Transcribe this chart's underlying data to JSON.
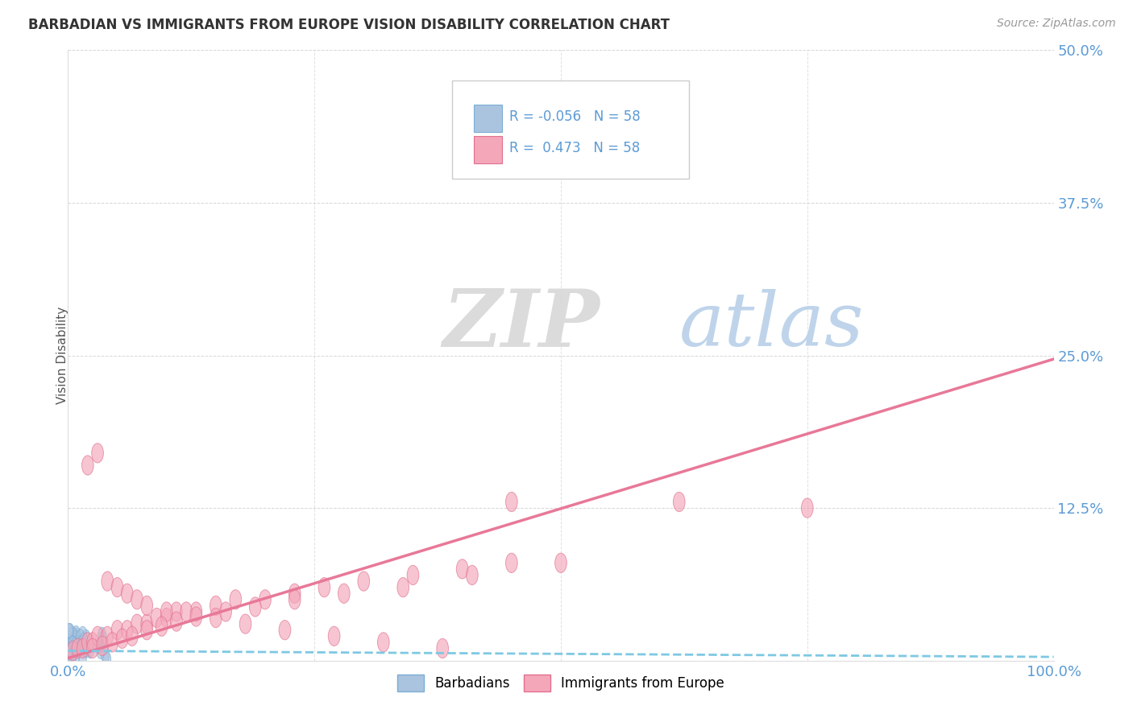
{
  "title": "BARBADIAN VS IMMIGRANTS FROM EUROPE VISION DISABILITY CORRELATION CHART",
  "source": "Source: ZipAtlas.com",
  "ylabel": "Vision Disability",
  "xlim": [
    0.0,
    1.0
  ],
  "ylim": [
    0.0,
    0.5
  ],
  "yticks": [
    0.0,
    0.125,
    0.25,
    0.375,
    0.5
  ],
  "ytick_labels": [
    "",
    "12.5%",
    "25.0%",
    "37.5%",
    "50.0%"
  ],
  "xticks": [
    0.0,
    0.25,
    0.5,
    0.75,
    1.0
  ],
  "xtick_labels": [
    "0.0%",
    "",
    "",
    "",
    "100.0%"
  ],
  "R_barbadian": -0.056,
  "N_barbadian": 58,
  "R_europe": 0.473,
  "N_europe": 58,
  "color_barbadian": "#aac4e0",
  "color_europe": "#f4a7b9",
  "edge_barbadian": "#7badd4",
  "edge_europe": "#e07090",
  "trendline_barbadian_color": "#7ec8e3",
  "trendline_europe_color": "#e87898",
  "background_color": "#ffffff",
  "tick_color": "#5b9bd5",
  "legend_label_barbadian": "R = -0.056   N = 58",
  "legend_label_europe": "R =  0.473   N = 58",
  "bottom_legend_barbadian": "Barbadians",
  "bottom_legend_europe": "Immigrants from Europe",
  "barb_slope": -0.005,
  "barb_intercept": 0.008,
  "euro_slope": 0.245,
  "euro_intercept": 0.002,
  "euro_x": [
    0.005,
    0.01,
    0.015,
    0.02,
    0.025,
    0.03,
    0.04,
    0.05,
    0.06,
    0.07,
    0.08,
    0.09,
    0.1,
    0.11,
    0.13,
    0.15,
    0.17,
    0.2,
    0.23,
    0.26,
    0.3,
    0.35,
    0.4,
    0.45,
    0.02,
    0.03,
    0.04,
    0.05,
    0.06,
    0.07,
    0.08,
    0.1,
    0.12,
    0.15,
    0.18,
    0.22,
    0.27,
    0.32,
    0.38,
    0.45,
    0.025,
    0.035,
    0.045,
    0.055,
    0.065,
    0.08,
    0.095,
    0.11,
    0.13,
    0.16,
    0.19,
    0.23,
    0.28,
    0.34,
    0.41,
    0.5,
    0.62,
    0.75
  ],
  "euro_y": [
    0.008,
    0.01,
    0.01,
    0.015,
    0.015,
    0.02,
    0.02,
    0.025,
    0.025,
    0.03,
    0.03,
    0.035,
    0.035,
    0.04,
    0.04,
    0.045,
    0.05,
    0.05,
    0.055,
    0.06,
    0.065,
    0.07,
    0.075,
    0.08,
    0.16,
    0.17,
    0.065,
    0.06,
    0.055,
    0.05,
    0.045,
    0.04,
    0.04,
    0.035,
    0.03,
    0.025,
    0.02,
    0.015,
    0.01,
    0.13,
    0.01,
    0.012,
    0.015,
    0.018,
    0.02,
    0.025,
    0.028,
    0.032,
    0.036,
    0.04,
    0.044,
    0.05,
    0.055,
    0.06,
    0.07,
    0.08,
    0.13,
    0.125
  ]
}
